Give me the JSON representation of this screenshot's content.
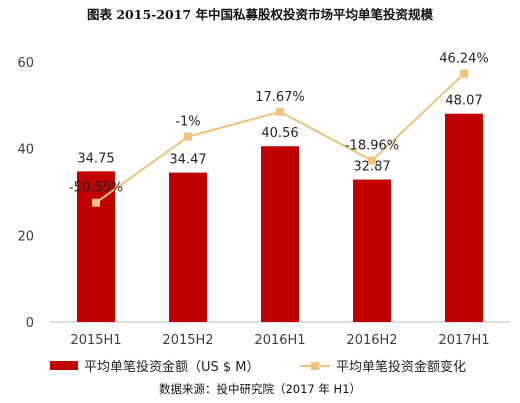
{
  "chart_data": {
    "type": "bar",
    "title": "图表 2015-2017 年中国私募股权投资市场平均单笔投资规模",
    "categories": [
      "2015H1",
      "2015H2",
      "2016H1",
      "2016H2",
      "2017H1"
    ],
    "series": [
      {
        "name": "平均单笔投资金额（US $ M）",
        "type": "bar",
        "values": [
          34.75,
          34.47,
          40.56,
          32.87,
          48.07
        ],
        "labels": [
          "34.75",
          "34.47",
          "40.56",
          "32.87",
          "48.07"
        ],
        "color": "#c00000"
      },
      {
        "name": "平均单笔投资金额变化",
        "type": "line",
        "values": [
          -50.55,
          -1,
          17.67,
          -18.96,
          46.24
        ],
        "labels": [
          "-50.55%",
          "-1%",
          "17.67%",
          "-18.96%",
          "46.24%"
        ],
        "color": "#f0c27b"
      }
    ],
    "ylim": [
      0,
      60
    ],
    "yticks": [
      0,
      20,
      40,
      60
    ],
    "grid": false,
    "legend": "bottom",
    "source": "数据来源：投中研究院（2017 年 H1）"
  }
}
